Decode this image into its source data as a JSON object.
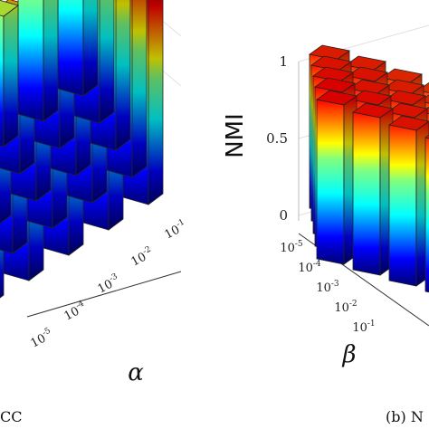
{
  "chart_data": [
    {
      "type": "bar3d",
      "panel": "left",
      "caption": "CC",
      "alpha_label": "α",
      "alpha_ticks": [
        "10-5",
        "10-4",
        "10-3",
        "10-2",
        "10-1"
      ],
      "colormap": "jet",
      "values": [
        [
          0.25,
          0.45,
          0.55,
          0.6,
          0.95
        ],
        [
          0.35,
          0.55,
          0.65,
          0.75,
          0.9
        ],
        [
          0.4,
          0.6,
          0.7,
          0.8,
          0.88
        ],
        [
          0.45,
          0.5,
          0.72,
          0.78,
          0.85
        ],
        [
          0.55,
          0.48,
          0.6,
          0.7,
          0.8
        ]
      ]
    },
    {
      "type": "bar3d",
      "panel": "right",
      "caption": "(b) N",
      "zlabel": "NMI",
      "beta_label": "β",
      "z_ticks": [
        "0",
        "0.5",
        "1"
      ],
      "zlim": [
        0,
        1
      ],
      "beta_ticks": [
        "10-5",
        "10-4",
        "10-3",
        "10-2",
        "10-1"
      ],
      "colormap": "jet",
      "values": [
        [
          0.88,
          0.87,
          0.86,
          0.85,
          0.84
        ],
        [
          0.88,
          0.87,
          0.86,
          0.85,
          0.84
        ],
        [
          0.87,
          0.86,
          0.86,
          0.85,
          0.84
        ],
        [
          0.86,
          0.86,
          0.85,
          0.84,
          0.83
        ],
        [
          0.85,
          0.85,
          0.84,
          0.83,
          0.82
        ]
      ]
    }
  ]
}
